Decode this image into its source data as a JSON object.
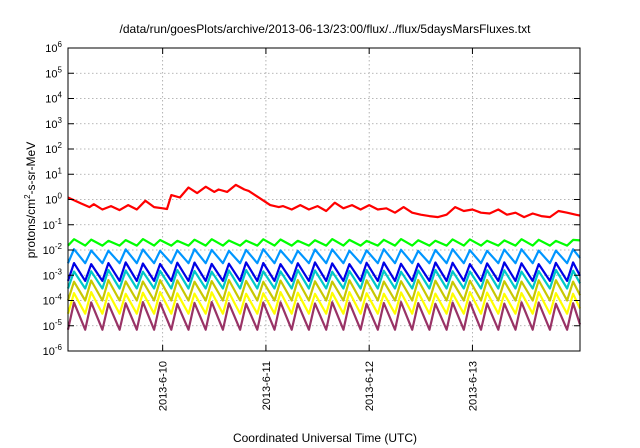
{
  "chart_data": {
    "type": "line",
    "title": "/data/run/goesPlots/archive/2013-06-13/23:00/flux/../flux/5daysMarsFluxes.txt",
    "xlabel": "Coordinated Universal Time (UTC)",
    "ylabel": {
      "prefix": "protons/cm",
      "superscript": "2",
      "suffix": "-s-sr-MeV"
    },
    "x_range": [
      "2013-06-09 02:00",
      "2013-06-14 01:00"
    ],
    "x_ticks": [
      "2013-6-10",
      "2013-6-11",
      "2013-6-12",
      "2013-6-13"
    ],
    "y_scale": "log",
    "ylim": [
      1e-06,
      1000000.0
    ],
    "y_ticks": [
      {
        "base": "10",
        "exp": "-6"
      },
      {
        "base": "10",
        "exp": "-5"
      },
      {
        "base": "10",
        "exp": "-4"
      },
      {
        "base": "10",
        "exp": "-3"
      },
      {
        "base": "10",
        "exp": "-2"
      },
      {
        "base": "10",
        "exp": "-1"
      },
      {
        "base": "10",
        "exp": "0"
      },
      {
        "base": "10",
        "exp": "1"
      },
      {
        "base": "10",
        "exp": "2"
      },
      {
        "base": "10",
        "exp": "3"
      },
      {
        "base": "10",
        "exp": "4"
      },
      {
        "base": "10",
        "exp": "5"
      },
      {
        "base": "10",
        "exp": "6"
      }
    ],
    "grid": true,
    "legend": "none",
    "sawtooth_period_hours": 4,
    "series": [
      {
        "color": "#ff0000",
        "pattern": "smooth",
        "points": [
          [
            "2013-06-09 02:00",
            1.2
          ],
          [
            "2013-06-09 05:00",
            0.7
          ],
          [
            "2013-06-09 07:00",
            0.5
          ],
          [
            "2013-06-09 08:00",
            0.65
          ],
          [
            "2013-06-09 10:00",
            0.4
          ],
          [
            "2013-06-09 12:00",
            0.55
          ],
          [
            "2013-06-09 14:00",
            0.38
          ],
          [
            "2013-06-09 16:00",
            0.6
          ],
          [
            "2013-06-09 18:00",
            0.4
          ],
          [
            "2013-06-09 20:00",
            0.9
          ],
          [
            "2013-06-09 22:00",
            0.5
          ],
          [
            "2013-06-10 00:00",
            0.45
          ],
          [
            "2013-06-10 01:00",
            0.42
          ],
          [
            "2013-06-10 02:00",
            1.5
          ],
          [
            "2013-06-10 04:00",
            1.2
          ],
          [
            "2013-06-10 06:00",
            3.0
          ],
          [
            "2013-06-10 08:00",
            1.8
          ],
          [
            "2013-06-10 10:00",
            3.2
          ],
          [
            "2013-06-10 12:00",
            2.0
          ],
          [
            "2013-06-10 13:00",
            2.5
          ],
          [
            "2013-06-10 15:00",
            2.0
          ],
          [
            "2013-06-10 17:00",
            3.8
          ],
          [
            "2013-06-10 19:00",
            2.5
          ],
          [
            "2013-06-10 20:00",
            2.2
          ],
          [
            "2013-06-10 22:00",
            1.3
          ],
          [
            "2013-06-11 01:00",
            0.6
          ],
          [
            "2013-06-11 03:00",
            0.5
          ],
          [
            "2013-06-11 04:00",
            0.55
          ],
          [
            "2013-06-11 06:00",
            0.4
          ],
          [
            "2013-06-11 08:00",
            0.6
          ],
          [
            "2013-06-11 10:00",
            0.4
          ],
          [
            "2013-06-11 12:00",
            0.55
          ],
          [
            "2013-06-11 14:00",
            0.35
          ],
          [
            "2013-06-11 16:00",
            0.75
          ],
          [
            "2013-06-11 18:00",
            0.45
          ],
          [
            "2013-06-11 20:00",
            0.6
          ],
          [
            "2013-06-11 22:00",
            0.4
          ],
          [
            "2013-06-12 00:00",
            0.6
          ],
          [
            "2013-06-12 02:00",
            0.4
          ],
          [
            "2013-06-12 04:00",
            0.45
          ],
          [
            "2013-06-12 06:00",
            0.3
          ],
          [
            "2013-06-12 08:00",
            0.5
          ],
          [
            "2013-06-12 10:00",
            0.3
          ],
          [
            "2013-06-12 12:00",
            0.25
          ],
          [
            "2013-06-12 14:00",
            0.22
          ],
          [
            "2013-06-12 16:00",
            0.2
          ],
          [
            "2013-06-12 18:00",
            0.25
          ],
          [
            "2013-06-12 20:00",
            0.5
          ],
          [
            "2013-06-12 22:00",
            0.35
          ],
          [
            "2013-06-13 00:00",
            0.4
          ],
          [
            "2013-06-13 02:00",
            0.3
          ],
          [
            "2013-06-13 04:00",
            0.28
          ],
          [
            "2013-06-13 06:00",
            0.4
          ],
          [
            "2013-06-13 08:00",
            0.25
          ],
          [
            "2013-06-13 10:00",
            0.3
          ],
          [
            "2013-06-13 12:00",
            0.2
          ],
          [
            "2013-06-13 14:00",
            0.28
          ],
          [
            "2013-06-13 16:00",
            0.22
          ],
          [
            "2013-06-13 18:00",
            0.2
          ],
          [
            "2013-06-13 20:00",
            0.35
          ],
          [
            "2013-06-13 22:00",
            0.3
          ],
          [
            "2013-06-14 00:00",
            0.25
          ],
          [
            "2013-06-14 01:00",
            0.23
          ]
        ]
      },
      {
        "color": "#00ff00",
        "pattern": "sawtooth",
        "low": 0.015,
        "high": 0.025
      },
      {
        "color": "#0096ff",
        "pattern": "sawtooth",
        "low": 0.003,
        "high": 0.01
      },
      {
        "color": "#0000e6",
        "pattern": "sawtooth",
        "low": 0.0006,
        "high": 0.003
      },
      {
        "color": "#00c8c8",
        "pattern": "sawtooth",
        "low": 0.0003,
        "high": 0.0015
      },
      {
        "color": "#c8c800",
        "pattern": "sawtooth",
        "low": 0.0001,
        "high": 0.0006
      },
      {
        "color": "#ffff00",
        "pattern": "sawtooth",
        "low": 3e-05,
        "high": 0.0002
      },
      {
        "color": "#993366",
        "pattern": "sawtooth",
        "low": 7e-06,
        "high": 8e-05
      }
    ]
  }
}
